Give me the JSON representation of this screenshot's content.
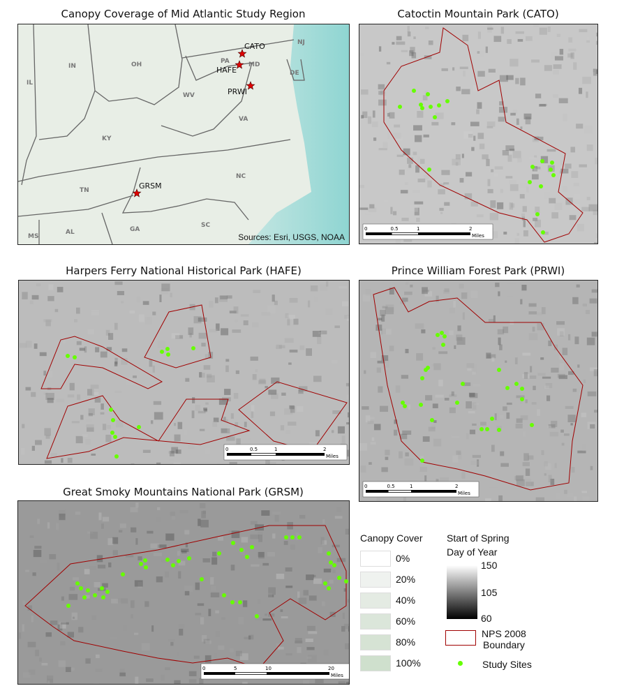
{
  "overview": {
    "title": "Canopy Coverage of Mid Atlantic Study Region",
    "sources": "Sources: Esri, USGS, NOAA",
    "states": [
      "IN",
      "OH",
      "IL",
      "PA",
      "NJ",
      "MD",
      "DE",
      "WV",
      "KY",
      "VA",
      "NC",
      "TN",
      "SC",
      "GA",
      "AL",
      "MS"
    ],
    "sites": [
      "CATO",
      "HAFE",
      "PRWI",
      "GRSM"
    ],
    "site_marker": "red-star",
    "site_color": "#e00000",
    "ocean_color": "#a6dcd8"
  },
  "cato": {
    "title": "Catoctin Mountain Park (CATO)",
    "scale": [
      "0",
      "0.5",
      "1",
      "2",
      "Miles"
    ]
  },
  "hafe": {
    "title": "Harpers Ferry National Historical Park (HAFE)",
    "scale": [
      "0",
      "0.5",
      "1",
      "2",
      "Miles"
    ]
  },
  "prwi": {
    "title": "Prince William Forest Park (PRWI)",
    "scale": [
      "0",
      "0.5",
      "1",
      "2",
      "Miles"
    ]
  },
  "grsm": {
    "title": "Great Smoky Mountains National Park (GRSM)",
    "scale": [
      "0",
      "5",
      "10",
      "20",
      "Miles"
    ]
  },
  "legend": {
    "canopy": {
      "title": "Canopy Cover",
      "items": [
        {
          "label": "0%",
          "color": "#ffffff"
        },
        {
          "label": "20%",
          "color": "#eff2ef"
        },
        {
          "label": "40%",
          "color": "#e4ebe3"
        },
        {
          "label": "60%",
          "color": "#dbe6da"
        },
        {
          "label": "80%",
          "color": "#d6e3d4"
        },
        {
          "label": "100%",
          "color": "#cfe0cd"
        }
      ]
    },
    "sos": {
      "title_line1": "Start of Spring",
      "title_line2": "Day of Year",
      "ticks": [
        "150",
        "105",
        "60"
      ]
    },
    "boundary": {
      "line1": "NPS 2008",
      "line2": "Boundary",
      "color": "#a00000"
    },
    "sites": {
      "label": "Study Sites",
      "color": "#66ff00"
    }
  }
}
